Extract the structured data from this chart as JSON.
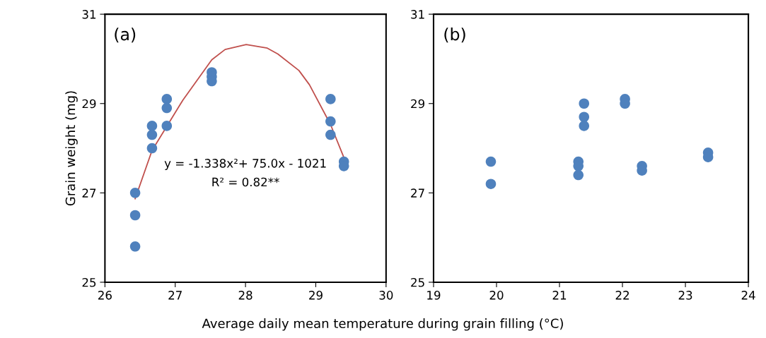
{
  "chart_data": [
    {
      "type": "scatter",
      "ylabel": "Grain weight (mg)",
      "xlabel": "Average daily mean temperature during grain filling (°C)",
      "xlim": [
        26,
        30
      ],
      "xticks": [
        26,
        27,
        28,
        29,
        30
      ],
      "ylim": [
        25,
        31
      ],
      "yticks": [
        25,
        27,
        29,
        31
      ],
      "grid": false,
      "marker": "circle",
      "annotations": [
        "(a)",
        "y = -1.338x²+ 75.0x - 1021",
        "R² = 0.82**"
      ],
      "series": [
        {
          "color": "#4f81bd",
          "x": [
            26.43,
            26.43,
            26.43,
            26.67,
            26.67,
            26.67,
            26.88,
            26.88,
            26.88,
            27.52,
            27.52,
            27.52,
            29.21,
            29.21,
            29.21,
            29.4,
            29.4
          ],
          "values": [
            27.0,
            26.5,
            25.8,
            28.5,
            28.3,
            28.0,
            29.1,
            28.9,
            28.5,
            29.7,
            29.6,
            29.5,
            29.1,
            28.6,
            28.3,
            27.7,
            27.6
          ]
        },
        {
          "type": "line",
          "color": "#c0504d",
          "marker": "none",
          "x": [
            26.43,
            26.67,
            27.11,
            27.52,
            27.71,
            28.01,
            28.31,
            28.46,
            28.76,
            28.91,
            29.21,
            29.4
          ],
          "values": [
            26.87,
            27.95,
            29.08,
            29.98,
            30.21,
            30.32,
            30.24,
            30.11,
            29.74,
            29.42,
            28.53,
            27.79
          ]
        }
      ]
    },
    {
      "type": "scatter",
      "xlim": [
        19,
        24
      ],
      "xticks": [
        19,
        20,
        21,
        22,
        23,
        24
      ],
      "ylim": [
        25,
        31
      ],
      "yticks": [
        25,
        27,
        29,
        31
      ],
      "grid": false,
      "marker": "circle",
      "annotations": [
        "(b)"
      ],
      "series": [
        {
          "color": "#4f81bd",
          "x": [
            19.91,
            19.91,
            21.3,
            21.3,
            21.3,
            21.39,
            21.39,
            21.39,
            22.04,
            22.04,
            22.31,
            22.31,
            23.36,
            23.36
          ],
          "values": [
            27.7,
            27.2,
            27.7,
            27.6,
            27.4,
            29.0,
            28.7,
            28.5,
            29.1,
            29.0,
            27.6,
            27.5,
            27.9,
            27.8
          ]
        }
      ]
    }
  ]
}
